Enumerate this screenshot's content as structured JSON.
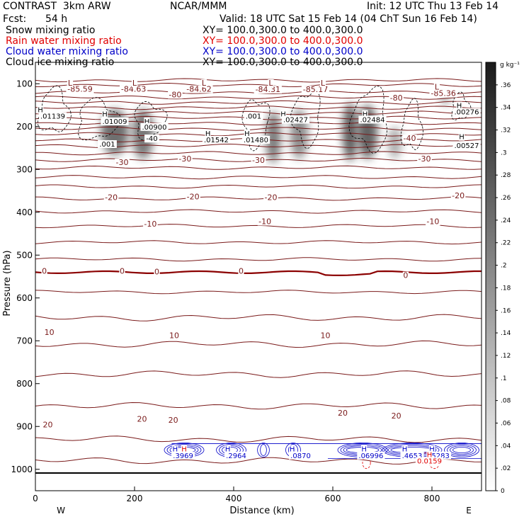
{
  "header": {
    "model": "CONTRAST  3km ARW",
    "center": "NCAR/MMM",
    "init": "Init: 12 UTC Thu 13 Feb 14",
    "fcst_label": "Fcst:",
    "fcst_value": "54 h",
    "valid": "Valid: 18 UTC Sat 15 Feb 14 (04 ChT Sun 16 Feb 14)"
  },
  "fields": [
    {
      "name": "Snow mixing ratio",
      "xy": "XY= 100.0,300.0 to 400.0,300.0",
      "color": "#000000"
    },
    {
      "name": "Rain water mixing ratio",
      "xy": "XY= 100.0,300.0 to 400.0,300.0",
      "color": "#e00000"
    },
    {
      "name": "Cloud water mixing ratio",
      "xy": "XY= 100.0,300.0 to 400.0,300.0",
      "color": "#0000c8"
    },
    {
      "name": "Cloud ice mixing ratio",
      "xy": "XY= 100.0,300.0 to 400.0,300.0",
      "color": "#000000"
    }
  ],
  "colors": {
    "temperature": "#7a1a1a",
    "zero_line": "#8b0000",
    "cloud_water": "#0000c8",
    "rain": "#e00000",
    "ice": "#000000"
  },
  "chart_data": {
    "type": "heatmap",
    "xlabel": "Distance (km)",
    "ylabel": "Pressure (hPa)",
    "xlim": [
      0,
      900
    ],
    "ylim": [
      1050,
      50
    ],
    "xticks": [
      0,
      200,
      400,
      600,
      800
    ],
    "yticks": [
      100,
      200,
      300,
      400,
      500,
      600,
      700,
      800,
      900,
      1000
    ],
    "x_end_labels": {
      "left": "W",
      "right": "E"
    },
    "colorbar": {
      "unit": "g kg⁻¹",
      "ticks": [
        "0",
        ".02",
        ".04",
        ".06",
        ".08",
        ".1",
        ".12",
        ".14",
        ".16",
        ".18",
        ".2",
        ".22",
        ".24",
        ".26",
        ".28",
        ".3",
        ".32",
        ".34",
        ".36"
      ],
      "max": 0.38
    },
    "snow_cores": [
      {
        "x": 160,
        "p": 205,
        "half_width": 28,
        "top": 160,
        "bottom": 265,
        "peak": 0.3
      },
      {
        "x": 217,
        "p": 200,
        "half_width": 22,
        "top": 160,
        "bottom": 275,
        "peak": 0.28
      },
      {
        "x": 480,
        "p": 215,
        "half_width": 15,
        "top": 165,
        "bottom": 285,
        "peak": 0.28
      },
      {
        "x": 532,
        "p": 210,
        "half_width": 18,
        "top": 160,
        "bottom": 275,
        "peak": 0.24
      },
      {
        "x": 635,
        "p": 205,
        "half_width": 15,
        "top": 145,
        "bottom": 280,
        "peak": 0.34
      },
      {
        "x": 670,
        "p": 210,
        "half_width": 20,
        "top": 150,
        "bottom": 275,
        "peak": 0.33
      },
      {
        "x": 725,
        "p": 228,
        "half_width": 13,
        "top": 200,
        "bottom": 275,
        "peak": 0.18
      },
      {
        "x": 827,
        "p": 137,
        "half_width": 10,
        "top": 125,
        "bottom": 150,
        "peak": 0.18
      }
    ],
    "temperature_labels": [
      {
        "text": "-85.59",
        "x": 90,
        "p": 117
      },
      {
        "text": "-84.63",
        "x": 198,
        "p": 117
      },
      {
        "text": "-80",
        "x": 282,
        "p": 130
      },
      {
        "text": "-84.62",
        "x": 330,
        "p": 117
      },
      {
        "text": "-84.31",
        "x": 469,
        "p": 118
      },
      {
        "text": "-85.17",
        "x": 565,
        "p": 118
      },
      {
        "text": "-80",
        "x": 728,
        "p": 138
      },
      {
        "text": "-85.36",
        "x": 823,
        "p": 127
      },
      {
        "text": "-40",
        "x": 235,
        "p": 232
      },
      {
        "text": "-40",
        "x": 755,
        "p": 232
      },
      {
        "text": "-30",
        "x": 175,
        "p": 288
      },
      {
        "text": "-30",
        "x": 302,
        "p": 280
      },
      {
        "text": "-30",
        "x": 450,
        "p": 283
      },
      {
        "text": "-30",
        "x": 785,
        "p": 280
      },
      {
        "text": "-20",
        "x": 153,
        "p": 370
      },
      {
        "text": "-20",
        "x": 318,
        "p": 368
      },
      {
        "text": "-20",
        "x": 475,
        "p": 370
      },
      {
        "text": "-20",
        "x": 853,
        "p": 366
      },
      {
        "text": "-10",
        "x": 232,
        "p": 432
      },
      {
        "text": "-10",
        "x": 463,
        "p": 426
      },
      {
        "text": "-10",
        "x": 802,
        "p": 426
      },
      {
        "text": "0",
        "x": 18,
        "p": 542
      },
      {
        "text": "0",
        "x": 175,
        "p": 542
      },
      {
        "text": "0",
        "x": 245,
        "p": 543
      },
      {
        "text": "0",
        "x": 415,
        "p": 542
      },
      {
        "text": "0",
        "x": 747,
        "p": 552
      },
      {
        "text": "10",
        "x": 28,
        "p": 685
      },
      {
        "text": "10",
        "x": 280,
        "p": 692
      },
      {
        "text": "10",
        "x": 585,
        "p": 692
      },
      {
        "text": "20",
        "x": 25,
        "p": 900
      },
      {
        "text": "20",
        "x": 215,
        "p": 887
      },
      {
        "text": "20",
        "x": 278,
        "p": 890
      },
      {
        "text": "20",
        "x": 620,
        "p": 873
      },
      {
        "text": "20",
        "x": 728,
        "p": 880
      }
    ],
    "temperature_levels": [
      {
        "c": -84,
        "p": 92
      },
      {
        "c": -82,
        "p": 103
      },
      {
        "c": -80,
        "p": 120
      },
      {
        "c": -76,
        "p": 132
      },
      {
        "c": -72,
        "p": 144
      },
      {
        "c": -68,
        "p": 156
      },
      {
        "c": -64,
        "p": 168
      },
      {
        "c": -60,
        "p": 180
      },
      {
        "c": -56,
        "p": 192
      },
      {
        "c": -52,
        "p": 205
      },
      {
        "c": -48,
        "p": 218
      },
      {
        "c": -44,
        "p": 232
      },
      {
        "c": -40,
        "p": 245
      },
      {
        "c": -36,
        "p": 262
      },
      {
        "c": -32,
        "p": 278
      },
      {
        "c": -28,
        "p": 296
      },
      {
        "c": -24,
        "p": 318
      },
      {
        "c": -20,
        "p": 340
      },
      {
        "c": -16,
        "p": 368
      },
      {
        "c": -12,
        "p": 398
      },
      {
        "c": -8,
        "p": 432
      },
      {
        "c": -4,
        "p": 470
      },
      {
        "c": 0,
        "p": 510
      },
      {
        "c": 4,
        "p": 586
      },
      {
        "c": 8,
        "p": 646
      },
      {
        "c": 12,
        "p": 708
      },
      {
        "c": 16,
        "p": 778
      },
      {
        "c": 20,
        "p": 852
      },
      {
        "c": 24,
        "p": 930
      },
      {
        "c": 28,
        "p": 980
      }
    ],
    "zero_isotherm_p": 540,
    "snow_labels": [
      {
        "text": "H",
        "x": 10,
        "p": 165
      },
      {
        "text": ".01139",
        "x": 35,
        "p": 180
      },
      {
        "text": "H",
        "x": 140,
        "p": 175
      },
      {
        "text": ".01009",
        "x": 160,
        "p": 192
      },
      {
        "text": "H",
        "x": 225,
        "p": 192
      },
      {
        "text": ".00900",
        "x": 240,
        "p": 205
      },
      {
        "text": "H",
        "x": 348,
        "p": 220
      },
      {
        "text": ".01542",
        "x": 365,
        "p": 235
      },
      {
        "text": "H",
        "x": 427,
        "p": 220
      },
      {
        "text": ".01480",
        "x": 445,
        "p": 235
      },
      {
        "text": ".001",
        "x": 440,
        "p": 180
      },
      {
        "text": "H",
        "x": 500,
        "p": 175
      },
      {
        "text": ".02427",
        "x": 525,
        "p": 188
      },
      {
        "text": "H",
        "x": 665,
        "p": 175
      },
      {
        "text": ".02484",
        "x": 680,
        "p": 188
      },
      {
        "text": "H",
        "x": 855,
        "p": 155
      },
      {
        "text": ".00276",
        "x": 870,
        "p": 170
      },
      {
        "text": "H",
        "x": 860,
        "p": 228
      },
      {
        "text": ".00527",
        "x": 870,
        "p": 248
      },
      {
        "text": ".001",
        "x": 145,
        "p": 245
      },
      {
        "text": "-40",
        "x": 235,
        "p": 232
      }
    ],
    "low_markers": [
      {
        "text": "L",
        "x": 70,
        "p": 103
      },
      {
        "text": "L",
        "x": 200,
        "p": 103
      },
      {
        "text": "L",
        "x": 340,
        "p": 103
      },
      {
        "text": "L",
        "x": 475,
        "p": 103
      },
      {
        "text": "L",
        "x": 580,
        "p": 103
      },
      {
        "text": "L",
        "x": 810,
        "p": 112
      }
    ],
    "cloud_water_labels": [
      {
        "text": "H",
        "x": 282,
        "p": 957
      },
      {
        "text": ".3969",
        "x": 298,
        "p": 972
      },
      {
        "text": "H",
        "x": 388,
        "p": 957
      },
      {
        "text": ".2964",
        "x": 405,
        "p": 972
      },
      {
        "text": "H",
        "x": 518,
        "p": 957
      },
      {
        "text": ".0870",
        "x": 535,
        "p": 972
      },
      {
        "text": "H",
        "x": 663,
        "p": 957
      },
      {
        "text": ".06996",
        "x": 677,
        "p": 972
      },
      {
        "text": "H",
        "x": 745,
        "p": 957
      },
      {
        "text": ".4653",
        "x": 760,
        "p": 972
      },
      {
        "text": "H",
        "x": 800,
        "p": 957
      },
      {
        "text": ".5283",
        "x": 815,
        "p": 972
      }
    ],
    "rain_labels": [
      {
        "text": "H",
        "x": 300,
        "p": 957
      },
      {
        "text": "H",
        "x": 795,
        "p": 970
      },
      {
        "text": "0.0159",
        "x": 795,
        "p": 985
      }
    ]
  }
}
